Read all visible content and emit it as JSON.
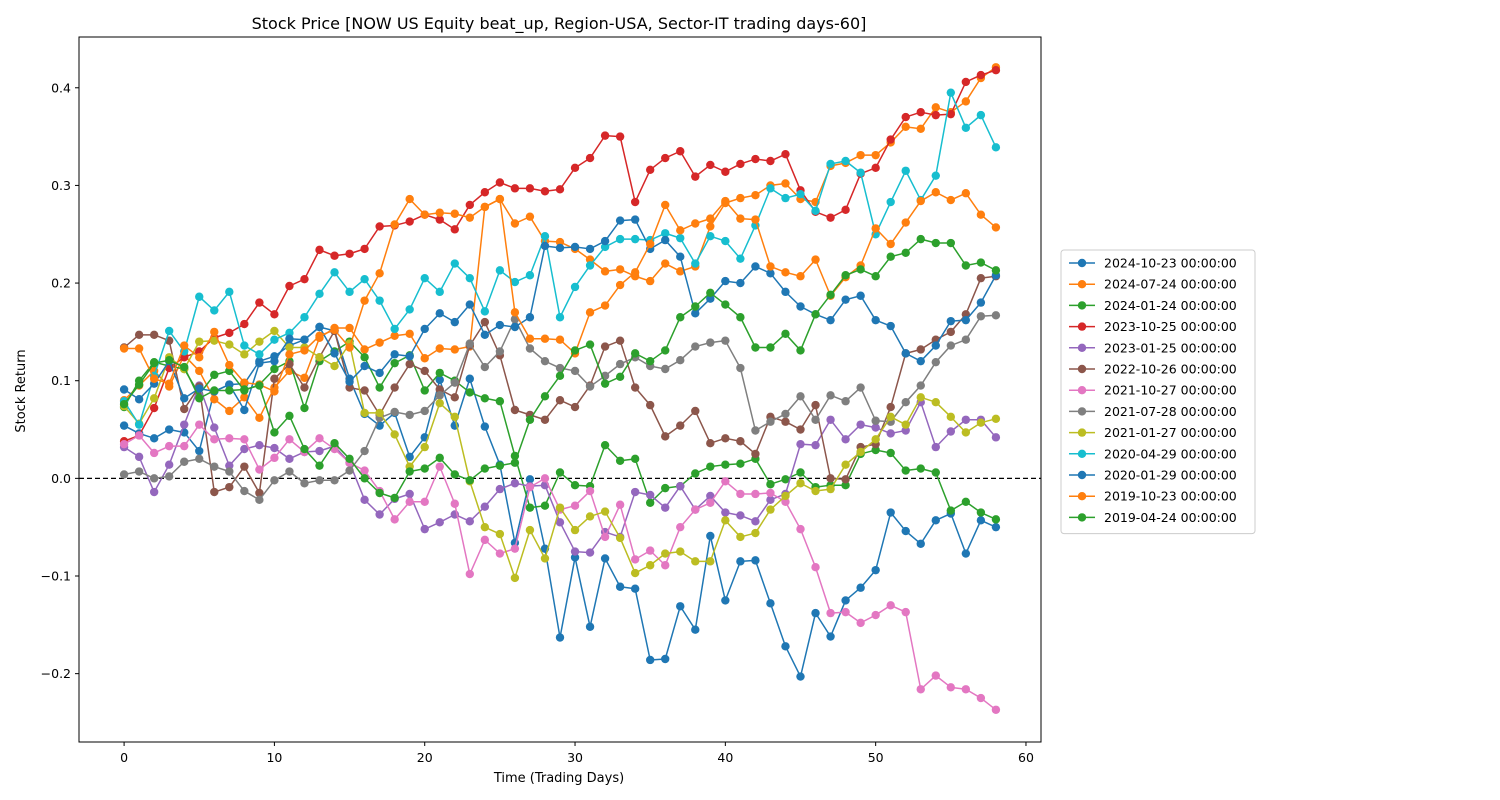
{
  "chart_data": {
    "type": "line",
    "title": "Stock Price [NOW US Equity beat_up, Region-USA, Sector-IT trading days-60]",
    "xlabel": "Time (Trading Days)",
    "ylabel": "Stock Return",
    "xlim": [
      -3,
      61
    ],
    "ylim": [
      -0.27,
      0.452
    ],
    "xticks": [
      0,
      10,
      20,
      30,
      40,
      50,
      60
    ],
    "yticks": [
      -0.2,
      -0.1,
      0.0,
      0.1,
      0.2,
      0.3,
      0.4
    ],
    "ytick_labels": [
      "−0.2",
      "−0.1",
      "0.0",
      "0.1",
      "0.2",
      "0.3",
      "0.4"
    ],
    "grid": false,
    "legend_position": "right-outside",
    "reference_line": {
      "y": 0.0,
      "style": "dashed",
      "color": "#000000"
    },
    "series": [
      {
        "name": "2024-10-23 00:00:00",
        "color": "#1f77b4",
        "values": [
          0.054,
          0.046,
          0.041,
          0.05,
          0.047,
          0.028,
          0.089,
          0.096,
          0.097,
          0.12,
          0.125,
          0.136,
          0.142,
          0.155,
          0.151,
          0.102,
          0.066,
          0.054,
          0.067,
          0.022,
          0.042,
          0.101,
          0.054,
          0.102,
          0.053,
          0.014,
          -0.066,
          -0.001,
          -0.072,
          -0.163,
          -0.081,
          -0.152,
          -0.082,
          -0.111,
          -0.113,
          -0.186,
          -0.185,
          -0.131,
          -0.155,
          -0.059,
          -0.125,
          -0.085,
          -0.084,
          -0.128,
          -0.172,
          -0.203,
          -0.138,
          -0.162,
          -0.125,
          -0.112,
          -0.094,
          -0.035,
          -0.054,
          -0.067,
          -0.043,
          -0.036,
          -0.077,
          -0.043,
          -0.05
        ]
      },
      {
        "name": "2024-07-24 00:00:00",
        "color": "#ff7f0e",
        "values": [
          0.08,
          0.095,
          0.11,
          0.094,
          0.126,
          0.11,
          0.081,
          0.069,
          0.083,
          0.062,
          0.093,
          0.11,
          0.103,
          0.144,
          0.154,
          0.154,
          0.132,
          0.139,
          0.146,
          0.148,
          0.123,
          0.133,
          0.132,
          0.135,
          0.278,
          0.286,
          0.261,
          0.268,
          0.243,
          0.242,
          0.235,
          0.224,
          0.212,
          0.214,
          0.207,
          0.202,
          0.22,
          0.212,
          0.217,
          0.258,
          0.282,
          0.287,
          0.29,
          0.3,
          0.302,
          0.286,
          0.283,
          0.32,
          0.323,
          0.331,
          0.331,
          0.344,
          0.36,
          0.358,
          0.38,
          0.375,
          0.386,
          0.41,
          0.421
        ]
      },
      {
        "name": "2024-01-24 00:00:00",
        "color": "#2ca02c",
        "values": [
          0.073,
          0.1,
          0.119,
          0.115,
          0.112,
          0.086,
          0.106,
          0.11,
          0.09,
          0.096,
          0.112,
          0.12,
          0.072,
          0.12,
          0.13,
          0.14,
          0.124,
          0.093,
          0.118,
          0.126,
          0.09,
          0.108,
          0.1,
          0.088,
          0.082,
          0.079,
          0.023,
          -0.03,
          -0.028,
          0.006,
          -0.007,
          -0.008,
          0.034,
          0.018,
          0.02,
          -0.025,
          -0.01,
          -0.008,
          0.005,
          0.012,
          0.014,
          0.015,
          0.02,
          -0.006,
          -0.001,
          0.006,
          -0.009,
          -0.007,
          -0.007,
          0.025,
          0.029,
          0.026,
          0.008,
          0.01,
          0.006,
          -0.033,
          -0.024,
          -0.035,
          -0.042
        ]
      },
      {
        "name": "2023-10-25 00:00:00",
        "color": "#d62728",
        "values": [
          0.038,
          0.044,
          0.072,
          0.113,
          0.124,
          0.13,
          0.144,
          0.149,
          0.158,
          0.18,
          0.168,
          0.197,
          0.204,
          0.234,
          0.228,
          0.23,
          0.235,
          0.258,
          0.259,
          0.263,
          0.27,
          0.265,
          0.255,
          0.28,
          0.293,
          0.303,
          0.297,
          0.297,
          0.294,
          0.296,
          0.318,
          0.328,
          0.351,
          0.35,
          0.283,
          0.316,
          0.328,
          0.335,
          0.309,
          0.321,
          0.314,
          0.322,
          0.327,
          0.325,
          0.332,
          0.295,
          0.273,
          0.267,
          0.275,
          0.312,
          0.318,
          0.347,
          0.37,
          0.375,
          0.372,
          0.373,
          0.406,
          0.413,
          0.418
        ]
      },
      {
        "name": "2023-01-25 00:00:00",
        "color": "#9467bd",
        "values": [
          0.032,
          0.022,
          -0.014,
          0.014,
          0.055,
          0.095,
          0.052,
          0.013,
          0.03,
          0.034,
          0.031,
          0.02,
          0.027,
          0.028,
          0.033,
          0.016,
          -0.022,
          -0.037,
          -0.021,
          -0.016,
          -0.052,
          -0.045,
          -0.037,
          -0.044,
          -0.029,
          -0.011,
          -0.005,
          -0.008,
          -0.007,
          -0.045,
          -0.075,
          -0.076,
          -0.055,
          -0.06,
          -0.014,
          -0.017,
          -0.03,
          -0.008,
          -0.032,
          -0.018,
          -0.035,
          -0.038,
          -0.044,
          -0.022,
          -0.016,
          0.035,
          0.034,
          0.06,
          0.04,
          0.055,
          0.052,
          0.046,
          0.049,
          0.078,
          0.032,
          0.048,
          0.06,
          0.06,
          0.042
        ]
      },
      {
        "name": "2022-10-26 00:00:00",
        "color": "#8c564b",
        "values": [
          0.134,
          0.147,
          0.147,
          0.141,
          0.071,
          0.094,
          -0.014,
          -0.009,
          0.012,
          -0.015,
          0.102,
          0.117,
          0.093,
          0.124,
          0.151,
          0.093,
          0.09,
          0.065,
          0.093,
          0.117,
          0.11,
          0.091,
          0.083,
          0.136,
          0.16,
          0.126,
          0.07,
          0.065,
          0.06,
          0.08,
          0.073,
          0.095,
          0.135,
          0.141,
          0.093,
          0.075,
          0.043,
          0.054,
          0.069,
          0.036,
          0.041,
          0.038,
          0.025,
          0.063,
          0.058,
          0.05,
          0.075,
          0.0,
          -0.001,
          0.032,
          0.035,
          0.073,
          0.128,
          0.132,
          0.142,
          0.15,
          0.168,
          0.205,
          0.207
        ]
      },
      {
        "name": "2021-10-27 00:00:00",
        "color": "#e377c2",
        "values": [
          0.035,
          0.044,
          0.026,
          0.033,
          0.033,
          0.055,
          0.04,
          0.041,
          0.04,
          0.009,
          0.021,
          0.04,
          0.027,
          0.041,
          0.03,
          0.016,
          0.008,
          -0.013,
          -0.042,
          -0.024,
          -0.024,
          0.012,
          -0.026,
          -0.098,
          -0.063,
          -0.077,
          -0.072,
          -0.009,
          0.0,
          -0.032,
          -0.028,
          -0.013,
          -0.06,
          -0.027,
          -0.083,
          -0.074,
          -0.089,
          -0.05,
          -0.032,
          -0.025,
          -0.003,
          -0.016,
          -0.016,
          -0.015,
          -0.024,
          -0.052,
          -0.091,
          -0.138,
          -0.137,
          -0.148,
          -0.14,
          -0.13,
          -0.137,
          -0.216,
          -0.202,
          -0.214,
          -0.216,
          -0.225,
          -0.237
        ]
      },
      {
        "name": "2021-07-28 00:00:00",
        "color": "#7f7f7f",
        "values": [
          0.004,
          0.007,
          0.0,
          0.002,
          0.017,
          0.02,
          0.012,
          0.007,
          -0.013,
          -0.022,
          -0.002,
          0.007,
          -0.005,
          -0.002,
          -0.002,
          0.008,
          0.028,
          0.062,
          0.068,
          0.065,
          0.069,
          0.085,
          0.098,
          0.138,
          0.114,
          0.13,
          0.163,
          0.133,
          0.12,
          0.113,
          0.11,
          0.094,
          0.105,
          0.117,
          0.124,
          0.115,
          0.112,
          0.121,
          0.135,
          0.139,
          0.141,
          0.113,
          0.049,
          0.058,
          0.066,
          0.084,
          0.06,
          0.085,
          0.079,
          0.093,
          0.059,
          0.058,
          0.078,
          0.095,
          0.119,
          0.136,
          0.142,
          0.166,
          0.167
        ]
      },
      {
        "name": "2021-01-27 00:00:00",
        "color": "#bcbd22",
        "values": [
          0.074,
          0.056,
          0.082,
          0.124,
          0.112,
          0.14,
          0.141,
          0.137,
          0.127,
          0.14,
          0.151,
          0.134,
          0.134,
          0.124,
          0.115,
          0.138,
          0.067,
          0.067,
          0.045,
          0.012,
          0.032,
          0.077,
          0.063,
          -0.003,
          -0.05,
          -0.057,
          -0.102,
          -0.053,
          -0.082,
          -0.03,
          -0.053,
          -0.039,
          -0.034,
          -0.061,
          -0.097,
          -0.089,
          -0.077,
          -0.075,
          -0.085,
          -0.085,
          -0.043,
          -0.06,
          -0.056,
          -0.032,
          -0.018,
          -0.005,
          -0.013,
          -0.011,
          0.014,
          0.027,
          0.04,
          0.063,
          0.055,
          0.083,
          0.078,
          0.063,
          0.047,
          0.057,
          0.061
        ]
      },
      {
        "name": "2020-04-29 00:00:00",
        "color": "#17becf",
        "values": [
          0.079,
          0.055,
          0.105,
          0.151,
          0.13,
          0.186,
          0.172,
          0.191,
          0.136,
          0.127,
          0.142,
          0.149,
          0.165,
          0.189,
          0.211,
          0.191,
          0.204,
          0.182,
          0.153,
          0.173,
          0.205,
          0.191,
          0.22,
          0.205,
          0.171,
          0.213,
          0.201,
          0.208,
          0.248,
          0.165,
          0.196,
          0.218,
          0.237,
          0.245,
          0.245,
          0.244,
          0.251,
          0.246,
          0.22,
          0.248,
          0.243,
          0.225,
          0.259,
          0.297,
          0.287,
          0.291,
          0.274,
          0.322,
          0.325,
          0.313,
          0.25,
          0.283,
          0.315,
          0.285,
          0.31,
          0.395,
          0.359,
          0.372,
          0.339
        ]
      },
      {
        "name": "2020-01-29 00:00:00",
        "color": "#1f77b4",
        "values": [
          0.091,
          0.081,
          0.097,
          0.12,
          0.082,
          0.092,
          0.089,
          0.096,
          0.07,
          0.118,
          0.12,
          0.143,
          0.142,
          0.155,
          0.128,
          0.099,
          0.115,
          0.108,
          0.127,
          0.125,
          0.153,
          0.169,
          0.16,
          0.178,
          0.147,
          0.157,
          0.155,
          0.165,
          0.238,
          0.236,
          0.237,
          0.235,
          0.243,
          0.264,
          0.265,
          0.235,
          0.244,
          0.227,
          0.169,
          0.184,
          0.202,
          0.2,
          0.217,
          0.21,
          0.191,
          0.176,
          0.168,
          0.162,
          0.183,
          0.187,
          0.162,
          0.156,
          0.128,
          0.12,
          0.136,
          0.161,
          0.162,
          0.18,
          0.208
        ]
      },
      {
        "name": "2019-10-23 00:00:00",
        "color": "#ff7f0e",
        "values": [
          0.133,
          0.133,
          0.102,
          0.097,
          0.136,
          0.124,
          0.15,
          0.116,
          0.098,
          0.096,
          0.089,
          0.127,
          0.131,
          0.146,
          0.152,
          0.134,
          0.182,
          0.21,
          0.26,
          0.286,
          0.27,
          0.272,
          0.271,
          0.267,
          0.278,
          0.286,
          0.17,
          0.143,
          0.143,
          0.142,
          0.128,
          0.17,
          0.177,
          0.198,
          0.211,
          0.24,
          0.28,
          0.254,
          0.261,
          0.266,
          0.284,
          0.266,
          0.265,
          0.217,
          0.211,
          0.207,
          0.224,
          0.187,
          0.206,
          0.218,
          0.256,
          0.24,
          0.262,
          0.284,
          0.293,
          0.285,
          0.292,
          0.27,
          0.257
        ]
      },
      {
        "name": "2019-04-24 00:00:00",
        "color": "#2ca02c",
        "values": [
          0.076,
          0.096,
          0.118,
          0.121,
          0.114,
          0.082,
          0.09,
          0.09,
          0.091,
          0.095,
          0.047,
          0.064,
          0.03,
          0.013,
          0.036,
          0.02,
          0.0,
          -0.015,
          -0.02,
          0.007,
          0.01,
          0.021,
          0.004,
          -0.002,
          0.01,
          0.013,
          0.016,
          0.06,
          0.084,
          0.105,
          0.131,
          0.137,
          0.097,
          0.104,
          0.128,
          0.12,
          0.131,
          0.165,
          0.176,
          0.19,
          0.178,
          0.165,
          0.134,
          0.134,
          0.148,
          0.131,
          0.168,
          0.188,
          0.208,
          0.214,
          0.207,
          0.227,
          0.231,
          0.245,
          0.241,
          0.241,
          0.218,
          0.221,
          0.213
        ]
      }
    ]
  }
}
